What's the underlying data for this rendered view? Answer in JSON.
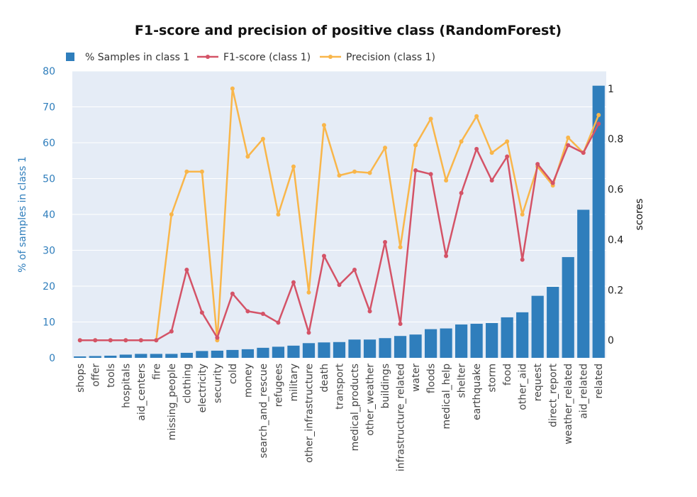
{
  "chart_data": {
    "type": "bar",
    "title": "F1-score and precision of positive class (RandomForest)",
    "ylabel": "% of samples in class 1",
    "y2label": "scores",
    "ylim": [
      0,
      80
    ],
    "y2lim": [
      -0.07,
      1.07
    ],
    "yticks": [
      0,
      10,
      20,
      30,
      40,
      50,
      60,
      70,
      80
    ],
    "y2ticks": [
      0,
      0.2,
      0.4,
      0.6,
      0.8,
      1
    ],
    "y2ticklabels": [
      "0",
      "0.2",
      "0.4",
      "0.6",
      "0.8",
      "1"
    ],
    "grid": true,
    "legend_position": "top-left",
    "categories": [
      "shops",
      "offer",
      "tools",
      "hospitals",
      "aid_centers",
      "fire",
      "missing_people",
      "clothing",
      "electricity",
      "security",
      "cold",
      "money",
      "search_and_rescue",
      "refugees",
      "military",
      "other_infrastructure",
      "death",
      "transport",
      "medical_products",
      "other_weather",
      "buildings",
      "infrastructure_related",
      "water",
      "floods",
      "medical_help",
      "shelter",
      "earthquake",
      "storm",
      "food",
      "other_aid",
      "request",
      "direct_report",
      "weather_related",
      "aid_related",
      "related"
    ],
    "series": [
      {
        "name": "% Samples in class 1",
        "type": "bar",
        "axis": "left",
        "color": "#2f7ebc",
        "values": [
          0.4,
          0.5,
          0.6,
          0.9,
          1.1,
          1.1,
          1.1,
          1.4,
          1.9,
          2.0,
          2.2,
          2.4,
          2.8,
          3.1,
          3.4,
          4.1,
          4.3,
          4.4,
          5.1,
          5.1,
          5.5,
          6.1,
          6.5,
          8.0,
          8.2,
          9.3,
          9.5,
          9.7,
          11.3,
          12.7,
          17.3,
          19.8,
          28.1,
          41.3,
          75.9
        ]
      },
      {
        "name": "F1-score (class 1)",
        "type": "line",
        "axis": "right",
        "color": "#d45367",
        "values": [
          0,
          0,
          0,
          0,
          0,
          0,
          0.035,
          0.28,
          0.11,
          0.01,
          0.185,
          0.115,
          0.105,
          0.07,
          0.23,
          0.03,
          0.335,
          0.22,
          0.28,
          0.115,
          0.39,
          0.065,
          0.675,
          0.66,
          0.335,
          0.585,
          0.76,
          0.635,
          0.73,
          0.32,
          0.7,
          0.625,
          0.775,
          0.745,
          0.86
        ]
      },
      {
        "name": "Precision (class 1)",
        "type": "line",
        "axis": "right",
        "color": "#f9b64a",
        "values": [
          0,
          0,
          0,
          0,
          0,
          0,
          0.5,
          0.67,
          0.67,
          0,
          1.0,
          0.73,
          0.8,
          0.5,
          0.69,
          0.19,
          0.855,
          0.655,
          0.67,
          0.665,
          0.765,
          0.37,
          0.775,
          0.88,
          0.635,
          0.79,
          0.89,
          0.745,
          0.79,
          0.5,
          0.69,
          0.615,
          0.805,
          0.745,
          0.895
        ]
      }
    ]
  }
}
